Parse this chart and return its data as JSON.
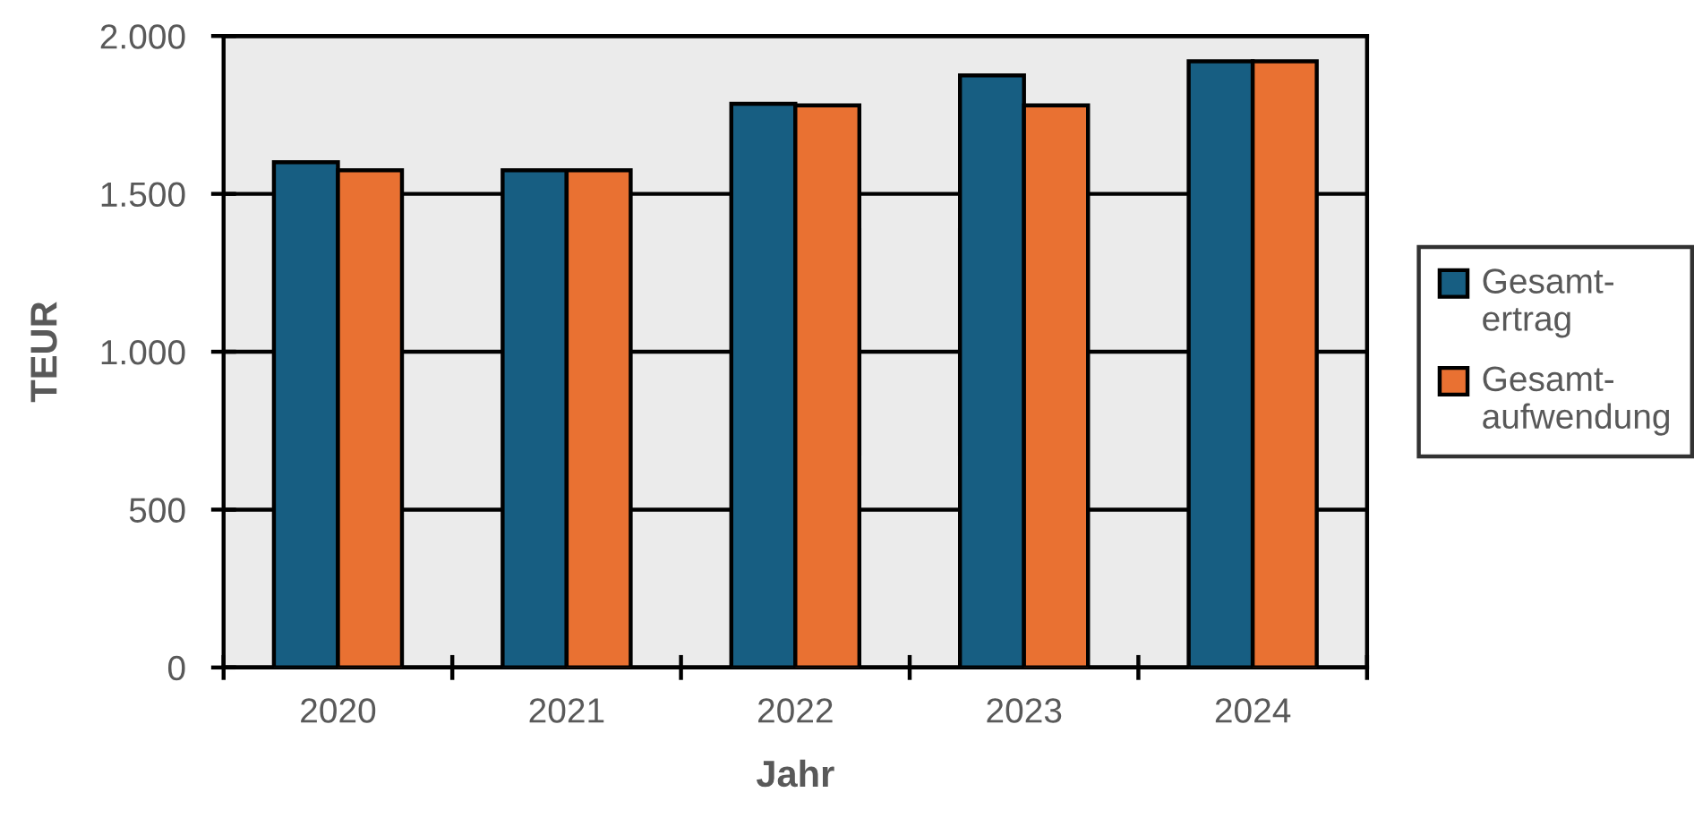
{
  "chart_data": {
    "type": "bar",
    "xlabel": "Jahr",
    "ylabel": "TEUR",
    "categories": [
      "2020",
      "2021",
      "2022",
      "2023",
      "2024"
    ],
    "series": [
      {
        "name": "Gesamt-\nertrag",
        "color": "#175e82",
        "values": [
          1600,
          1575,
          1785,
          1875,
          1920
        ]
      },
      {
        "name": "Gesamt-\naufwendung",
        "color": "#e97132",
        "values": [
          1575,
          1575,
          1780,
          1780,
          1920
        ]
      }
    ],
    "ylim": [
      0,
      2000
    ],
    "yticks": [
      {
        "value": 0,
        "label": "0"
      },
      {
        "value": 500,
        "label": "500"
      },
      {
        "value": 1000,
        "label": "1.000"
      },
      {
        "value": 1500,
        "label": "1.500"
      },
      {
        "value": 2000,
        "label": "2.000"
      }
    ],
    "grid": "y",
    "legend": "right"
  }
}
